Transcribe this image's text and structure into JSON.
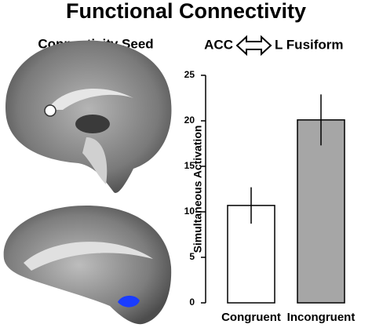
{
  "title": "Functional Connectivity",
  "seed_label": "Connectivity Seed",
  "chart_data": {
    "type": "bar",
    "title_left": "ACC",
    "title_right": "L Fusiform",
    "y_label": "Simultaneous Activation",
    "categories": [
      "Congruent",
      "Incongruent"
    ],
    "values": [
      10.7,
      20.1
    ],
    "errors": [
      2.0,
      2.8
    ],
    "colors": [
      "#ffffff",
      "#a6a6a6"
    ],
    "ylim": [
      0,
      25
    ],
    "yticks": [
      0,
      5,
      10,
      15,
      20,
      25
    ]
  }
}
